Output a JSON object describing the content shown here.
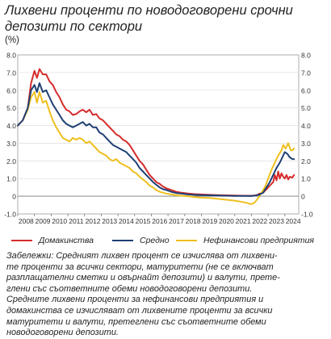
{
  "title_lines": [
    "Лихвени проценти по новодоговорени срочни",
    "депозити по сектори"
  ],
  "unit": "(%)",
  "legend": [
    "Домакинства",
    "Средно",
    "Нефинансови предприятия"
  ],
  "note_lines": [
    "Забележки: Средният лихвен процент се изчислява от лихвени-",
    "те проценти за всички сектори, матуритети (не се включват",
    "разплащателни сметки и овърнайт депозити) и валути, прете-",
    "глени със съответните обеми новодоговорени депозити.",
    "Средните лихвени проценти за нефинансови предприятия и",
    "домакинства се изчисляват от лихвените проценти за всички",
    "матуритети и валути, претеглени със съответните обеми",
    "новодоговорени депозити."
  ],
  "colors": {
    "households": "#d62b2b",
    "average": "#1e3f73",
    "nfc": "#eebf1e"
  },
  "chart_data": {
    "type": "line",
    "ylim": [
      -1.0,
      8.0
    ],
    "xlim": [
      2008.0,
      2024.83
    ],
    "y_ticks": [
      "8.0",
      "7.0",
      "6.0",
      "5.0",
      "4.0",
      "3.0",
      "2.0",
      "1.0",
      "0",
      "-1.0"
    ],
    "x_ticks": [
      "2008",
      "2009",
      "2010",
      "2011",
      "2012",
      "2013",
      "2014",
      "2015",
      "2016",
      "2017",
      "2018",
      "2019",
      "2020",
      "2021",
      "2022",
      "2023",
      "2024"
    ],
    "series": [
      {
        "name": "Домакинства",
        "points": [
          [
            2008.0,
            4.0
          ],
          [
            2008.3,
            4.3
          ],
          [
            2008.6,
            5.0
          ],
          [
            2008.8,
            6.4
          ],
          [
            2009.0,
            7.1
          ],
          [
            2009.15,
            6.7
          ],
          [
            2009.3,
            7.2
          ],
          [
            2009.5,
            6.9
          ],
          [
            2009.7,
            6.9
          ],
          [
            2009.9,
            6.5
          ],
          [
            2010.1,
            6.3
          ],
          [
            2010.3,
            5.9
          ],
          [
            2010.5,
            5.6
          ],
          [
            2010.7,
            5.2
          ],
          [
            2010.9,
            4.9
          ],
          [
            2011.1,
            4.8
          ],
          [
            2011.3,
            4.6
          ],
          [
            2011.5,
            4.65
          ],
          [
            2011.7,
            4.8
          ],
          [
            2011.9,
            4.9
          ],
          [
            2012.1,
            4.75
          ],
          [
            2012.3,
            4.9
          ],
          [
            2012.5,
            4.6
          ],
          [
            2012.7,
            4.65
          ],
          [
            2012.9,
            4.4
          ],
          [
            2013.1,
            4.3
          ],
          [
            2013.3,
            4.1
          ],
          [
            2013.5,
            3.9
          ],
          [
            2013.7,
            3.7
          ],
          [
            2013.9,
            3.5
          ],
          [
            2014.1,
            3.4
          ],
          [
            2014.3,
            3.2
          ],
          [
            2014.5,
            3.1
          ],
          [
            2014.7,
            2.9
          ],
          [
            2014.9,
            2.6
          ],
          [
            2015.1,
            2.3
          ],
          [
            2015.3,
            2.0
          ],
          [
            2015.5,
            1.8
          ],
          [
            2015.7,
            1.5
          ],
          [
            2015.9,
            1.2
          ],
          [
            2016.1,
            1.0
          ],
          [
            2016.3,
            0.8
          ],
          [
            2016.5,
            0.7
          ],
          [
            2016.7,
            0.55
          ],
          [
            2016.9,
            0.45
          ],
          [
            2017.2,
            0.35
          ],
          [
            2017.5,
            0.25
          ],
          [
            2017.8,
            0.2
          ],
          [
            2018.2,
            0.15
          ],
          [
            2018.6,
            0.12
          ],
          [
            2019.0,
            0.1
          ],
          [
            2019.5,
            0.08
          ],
          [
            2020.0,
            0.06
          ],
          [
            2020.5,
            0.05
          ],
          [
            2021.0,
            0.04
          ],
          [
            2021.5,
            0.03
          ],
          [
            2022.0,
            0.03
          ],
          [
            2022.3,
            0.05
          ],
          [
            2022.5,
            0.15
          ],
          [
            2022.7,
            0.2
          ],
          [
            2022.9,
            0.4
          ],
          [
            2023.1,
            0.6
          ],
          [
            2023.3,
            0.8
          ],
          [
            2023.4,
            1.2
          ],
          [
            2023.5,
            0.9
          ],
          [
            2023.6,
            1.4
          ],
          [
            2023.7,
            1.0
          ],
          [
            2023.8,
            1.3
          ],
          [
            2023.9,
            1.1
          ],
          [
            2024.0,
            1.0
          ],
          [
            2024.1,
            1.2
          ],
          [
            2024.2,
            0.95
          ],
          [
            2024.3,
            1.1
          ],
          [
            2024.45,
            1.05
          ],
          [
            2024.55,
            1.2
          ]
        ]
      },
      {
        "name": "Средно",
        "points": [
          [
            2008.0,
            4.0
          ],
          [
            2008.3,
            4.3
          ],
          [
            2008.6,
            5.0
          ],
          [
            2008.8,
            6.0
          ],
          [
            2009.0,
            6.3
          ],
          [
            2009.15,
            5.9
          ],
          [
            2009.3,
            6.4
          ],
          [
            2009.5,
            5.9
          ],
          [
            2009.7,
            6.0
          ],
          [
            2009.9,
            5.6
          ],
          [
            2010.1,
            5.2
          ],
          [
            2010.3,
            4.9
          ],
          [
            2010.5,
            4.6
          ],
          [
            2010.7,
            4.3
          ],
          [
            2010.9,
            4.1
          ],
          [
            2011.1,
            4.0
          ],
          [
            2011.3,
            3.9
          ],
          [
            2011.5,
            4.0
          ],
          [
            2011.7,
            4.1
          ],
          [
            2011.9,
            4.2
          ],
          [
            2012.1,
            4.0
          ],
          [
            2012.3,
            4.1
          ],
          [
            2012.5,
            3.9
          ],
          [
            2012.7,
            3.9
          ],
          [
            2012.9,
            3.6
          ],
          [
            2013.1,
            3.5
          ],
          [
            2013.3,
            3.3
          ],
          [
            2013.5,
            3.1
          ],
          [
            2013.7,
            2.9
          ],
          [
            2013.9,
            2.8
          ],
          [
            2014.1,
            2.7
          ],
          [
            2014.3,
            2.6
          ],
          [
            2014.5,
            2.5
          ],
          [
            2014.7,
            2.3
          ],
          [
            2014.9,
            2.1
          ],
          [
            2015.1,
            1.9
          ],
          [
            2015.3,
            1.6
          ],
          [
            2015.5,
            1.4
          ],
          [
            2015.7,
            1.2
          ],
          [
            2015.9,
            1.0
          ],
          [
            2016.1,
            0.8
          ],
          [
            2016.3,
            0.65
          ],
          [
            2016.5,
            0.5
          ],
          [
            2016.7,
            0.4
          ],
          [
            2016.9,
            0.35
          ],
          [
            2017.2,
            0.25
          ],
          [
            2017.5,
            0.18
          ],
          [
            2017.8,
            0.15
          ],
          [
            2018.2,
            0.1
          ],
          [
            2018.6,
            0.08
          ],
          [
            2019.0,
            0.06
          ],
          [
            2019.5,
            0.05
          ],
          [
            2020.0,
            0.04
          ],
          [
            2020.5,
            0.03
          ],
          [
            2021.0,
            0.02
          ],
          [
            2021.5,
            0.02
          ],
          [
            2022.0,
            0.01
          ],
          [
            2022.3,
            0.05
          ],
          [
            2022.5,
            0.1
          ],
          [
            2022.7,
            0.2
          ],
          [
            2022.9,
            0.5
          ],
          [
            2023.1,
            0.8
          ],
          [
            2023.3,
            1.2
          ],
          [
            2023.5,
            1.6
          ],
          [
            2023.7,
            1.9
          ],
          [
            2023.85,
            2.2
          ],
          [
            2024.0,
            2.5
          ],
          [
            2024.15,
            2.4
          ],
          [
            2024.3,
            2.2
          ],
          [
            2024.45,
            2.1
          ],
          [
            2024.55,
            2.1
          ]
        ]
      },
      {
        "name": "Нефинансови предприятия",
        "points": [
          [
            2008.0,
            4.0
          ],
          [
            2008.3,
            4.3
          ],
          [
            2008.6,
            4.9
          ],
          [
            2008.8,
            5.6
          ],
          [
            2009.0,
            5.9
          ],
          [
            2009.15,
            5.3
          ],
          [
            2009.3,
            5.9
          ],
          [
            2009.5,
            5.3
          ],
          [
            2009.7,
            5.4
          ],
          [
            2009.9,
            4.8
          ],
          [
            2010.1,
            4.3
          ],
          [
            2010.3,
            3.9
          ],
          [
            2010.5,
            3.6
          ],
          [
            2010.7,
            3.3
          ],
          [
            2010.9,
            3.2
          ],
          [
            2011.1,
            3.1
          ],
          [
            2011.3,
            3.3
          ],
          [
            2011.5,
            3.2
          ],
          [
            2011.7,
            3.3
          ],
          [
            2011.9,
            3.2
          ],
          [
            2012.1,
            3.0
          ],
          [
            2012.3,
            3.1
          ],
          [
            2012.5,
            2.9
          ],
          [
            2012.7,
            2.7
          ],
          [
            2012.9,
            2.5
          ],
          [
            2013.1,
            2.4
          ],
          [
            2013.3,
            2.3
          ],
          [
            2013.5,
            2.1
          ],
          [
            2013.7,
            2.0
          ],
          [
            2013.9,
            2.1
          ],
          [
            2014.1,
            1.9
          ],
          [
            2014.3,
            1.8
          ],
          [
            2014.5,
            1.7
          ],
          [
            2014.7,
            1.6
          ],
          [
            2014.9,
            1.4
          ],
          [
            2015.1,
            1.3
          ],
          [
            2015.3,
            1.1
          ],
          [
            2015.5,
            0.95
          ],
          [
            2015.7,
            0.8
          ],
          [
            2015.9,
            0.6
          ],
          [
            2016.1,
            0.5
          ],
          [
            2016.3,
            0.35
          ],
          [
            2016.5,
            0.25
          ],
          [
            2016.7,
            0.2
          ],
          [
            2016.9,
            0.15
          ],
          [
            2017.2,
            0.1
          ],
          [
            2017.5,
            0.05
          ],
          [
            2017.8,
            0.03
          ],
          [
            2018.2,
            0.0
          ],
          [
            2018.6,
            -0.05
          ],
          [
            2019.0,
            -0.08
          ],
          [
            2019.5,
            -0.1
          ],
          [
            2020.0,
            -0.15
          ],
          [
            2020.5,
            -0.2
          ],
          [
            2021.0,
            -0.25
          ],
          [
            2021.3,
            -0.3
          ],
          [
            2021.6,
            -0.35
          ],
          [
            2021.8,
            -0.4
          ],
          [
            2022.0,
            -0.45
          ],
          [
            2022.2,
            -0.35
          ],
          [
            2022.4,
            -0.1
          ],
          [
            2022.6,
            0.2
          ],
          [
            2022.8,
            0.5
          ],
          [
            2023.0,
            1.0
          ],
          [
            2023.2,
            1.5
          ],
          [
            2023.4,
            1.9
          ],
          [
            2023.6,
            2.3
          ],
          [
            2023.8,
            2.6
          ],
          [
            2023.9,
            2.9
          ],
          [
            2024.05,
            2.7
          ],
          [
            2024.2,
            3.0
          ],
          [
            2024.35,
            2.6
          ],
          [
            2024.45,
            2.6
          ],
          [
            2024.55,
            2.7
          ]
        ]
      }
    ]
  }
}
